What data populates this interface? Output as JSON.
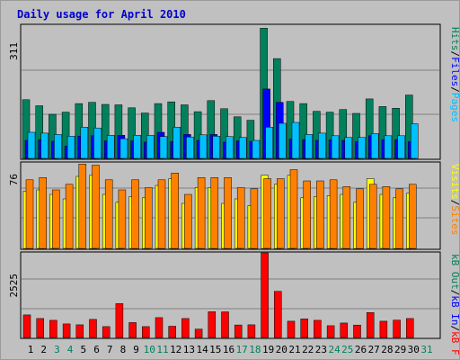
{
  "title": "Daily usage for April 2010",
  "colors": {
    "background": "#c0c0c0",
    "plot": "#c0c0c0",
    "title": "#0000cc",
    "hits": "#00805c",
    "files": "#0000ff",
    "pages": "#00c0ff",
    "visits": "#ffff00",
    "sites": "#ff8000",
    "kbf": "#ff0000",
    "kbin": "#0000ff",
    "kbout": "#00805c",
    "weekend_day": "#00805c",
    "weekday_day": "#000000"
  },
  "chart_data": [
    {
      "type": "bar",
      "panel": "hits-files-pages",
      "y_max_label": "311",
      "ylim": [
        0,
        311
      ],
      "legend": [
        {
          "key": "pages",
          "label": "Pages"
        },
        {
          "key": "sep1",
          "label": "/"
        },
        {
          "key": "files",
          "label": "Files"
        },
        {
          "key": "sep2",
          "label": "/"
        },
        {
          "key": "hits",
          "label": "Hits"
        }
      ],
      "categories": [
        "1",
        "2",
        "3",
        "4",
        "5",
        "6",
        "7",
        "8",
        "9",
        "10",
        "11",
        "12",
        "13",
        "14",
        "15",
        "16",
        "17",
        "18",
        "19",
        "20",
        "21",
        "22",
        "23",
        "24",
        "25",
        "26",
        "27",
        "28",
        "29",
        "30",
        "31"
      ],
      "series": [
        {
          "key": "hits",
          "values": [
            137,
            123,
            103,
            108,
            128,
            131,
            126,
            125,
            118,
            106,
            128,
            132,
            125,
            109,
            135,
            116,
            97,
            89,
            304,
            233,
            133,
            128,
            110,
            108,
            114,
            105,
            139,
            121,
            117,
            148,
            0
          ]
        },
        {
          "key": "files",
          "values": [
            42,
            44,
            40,
            29,
            52,
            53,
            41,
            54,
            41,
            38,
            61,
            39,
            56,
            42,
            56,
            38,
            41,
            40,
            162,
            131,
            45,
            44,
            42,
            43,
            42,
            39,
            53,
            44,
            44,
            39,
            0
          ]
        },
        {
          "key": "pages",
          "values": [
            61,
            59,
            56,
            52,
            73,
            71,
            54,
            46,
            54,
            54,
            51,
            73,
            50,
            55,
            52,
            51,
            49,
            42,
            73,
            82,
            84,
            56,
            59,
            53,
            49,
            49,
            58,
            53,
            53,
            81,
            0
          ]
        }
      ]
    },
    {
      "type": "bar",
      "panel": "visits-sites",
      "y_max_label": "76",
      "ylim": [
        0,
        76
      ],
      "legend": [
        {
          "key": "sites",
          "label": "Sites"
        },
        {
          "key": "sep",
          "label": "/"
        },
        {
          "key": "visits",
          "label": "Visits"
        }
      ],
      "categories": [
        "1",
        "2",
        "3",
        "4",
        "5",
        "6",
        "7",
        "8",
        "9",
        "10",
        "11",
        "12",
        "13",
        "14",
        "15",
        "16",
        "17",
        "18",
        "19",
        "20",
        "21",
        "22",
        "23",
        "24",
        "25",
        "26",
        "27",
        "28",
        "29",
        "30",
        "31"
      ],
      "series": [
        {
          "key": "visits",
          "values": [
            51,
            52,
            48,
            44,
            64,
            65,
            48,
            41,
            46,
            45,
            56,
            62,
            40,
            54,
            54,
            40,
            44,
            38,
            65,
            57,
            65,
            45,
            46,
            47,
            48,
            41,
            62,
            48,
            45,
            49,
            0
          ]
        },
        {
          "key": "sites",
          "values": [
            61,
            63,
            52,
            57,
            75,
            74,
            61,
            52,
            61,
            54,
            61,
            67,
            48,
            63,
            63,
            63,
            54,
            53,
            62,
            62,
            70,
            60,
            60,
            61,
            55,
            53,
            57,
            55,
            53,
            57,
            0
          ]
        }
      ]
    },
    {
      "type": "bar",
      "panel": "kb",
      "y_max_label": "2525",
      "ylim": [
        0,
        2525
      ],
      "legend": [
        {
          "key": "kbf",
          "label": "kB F"
        },
        {
          "key": "sep1",
          "label": "/"
        },
        {
          "key": "kbin",
          "label": "kB In"
        },
        {
          "key": "sep2",
          "label": "/"
        },
        {
          "key": "kbout",
          "label": "kB Out"
        }
      ],
      "categories": [
        "1",
        "2",
        "3",
        "4",
        "5",
        "6",
        "7",
        "8",
        "9",
        "10",
        "11",
        "12",
        "13",
        "14",
        "15",
        "16",
        "17",
        "18",
        "19",
        "20",
        "21",
        "22",
        "23",
        "24",
        "25",
        "26",
        "27",
        "28",
        "29",
        "30",
        "31"
      ],
      "series": [
        {
          "key": "kbf",
          "values": [
            675,
            567,
            513,
            405,
            378,
            540,
            324,
            1012,
            445,
            324,
            594,
            337,
            567,
            251,
            769,
            765,
            374,
            378,
            2525,
            1377,
            486,
            557,
            513,
            351,
            432,
            372,
            743,
            486,
            519,
            567,
            0
          ]
        }
      ]
    }
  ],
  "days": [
    {
      "label": "1",
      "weekend": false
    },
    {
      "label": "2",
      "weekend": false
    },
    {
      "label": "3",
      "weekend": true
    },
    {
      "label": "4",
      "weekend": true
    },
    {
      "label": "5",
      "weekend": false
    },
    {
      "label": "6",
      "weekend": false
    },
    {
      "label": "7",
      "weekend": false
    },
    {
      "label": "8",
      "weekend": false
    },
    {
      "label": "9",
      "weekend": false
    },
    {
      "label": "10",
      "weekend": true
    },
    {
      "label": "11",
      "weekend": true
    },
    {
      "label": "12",
      "weekend": false
    },
    {
      "label": "13",
      "weekend": false
    },
    {
      "label": "14",
      "weekend": false
    },
    {
      "label": "15",
      "weekend": false
    },
    {
      "label": "16",
      "weekend": false
    },
    {
      "label": "17",
      "weekend": true
    },
    {
      "label": "18",
      "weekend": true
    },
    {
      "label": "19",
      "weekend": false
    },
    {
      "label": "20",
      "weekend": false
    },
    {
      "label": "21",
      "weekend": false
    },
    {
      "label": "22",
      "weekend": false
    },
    {
      "label": "23",
      "weekend": false
    },
    {
      "label": "24",
      "weekend": true
    },
    {
      "label": "25",
      "weekend": true
    },
    {
      "label": "26",
      "weekend": false
    },
    {
      "label": "27",
      "weekend": false
    },
    {
      "label": "28",
      "weekend": false
    },
    {
      "label": "29",
      "weekend": false
    },
    {
      "label": "30",
      "weekend": false
    },
    {
      "label": "31",
      "weekend": true
    }
  ]
}
